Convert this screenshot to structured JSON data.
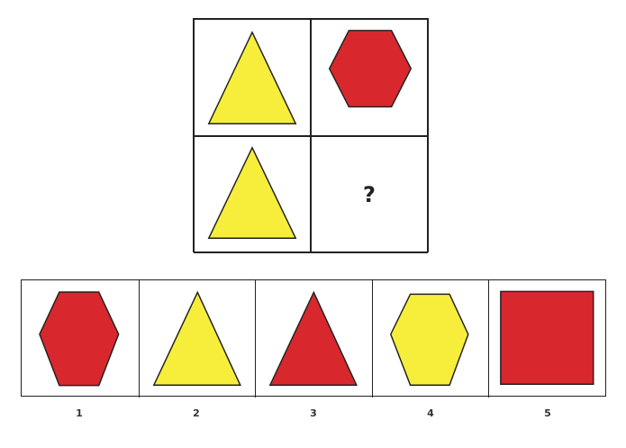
{
  "puzzle": {
    "cells": [
      {
        "shape": "triangle",
        "color": "#f7ee3c"
      },
      {
        "shape": "hexagon",
        "color": "#d8282d"
      },
      {
        "shape": "triangle",
        "color": "#f7ee3c"
      },
      {
        "shape": "question",
        "text": "?"
      }
    ]
  },
  "options": [
    {
      "label": "1",
      "shape": "hexagon",
      "color": "#d8282d"
    },
    {
      "label": "2",
      "shape": "triangle",
      "color": "#f7ee3c"
    },
    {
      "label": "3",
      "shape": "triangle",
      "color": "#d8282d"
    },
    {
      "label": "4",
      "shape": "hexagon",
      "color": "#f7ee3c"
    },
    {
      "label": "5",
      "shape": "square",
      "color": "#d8282d"
    }
  ]
}
